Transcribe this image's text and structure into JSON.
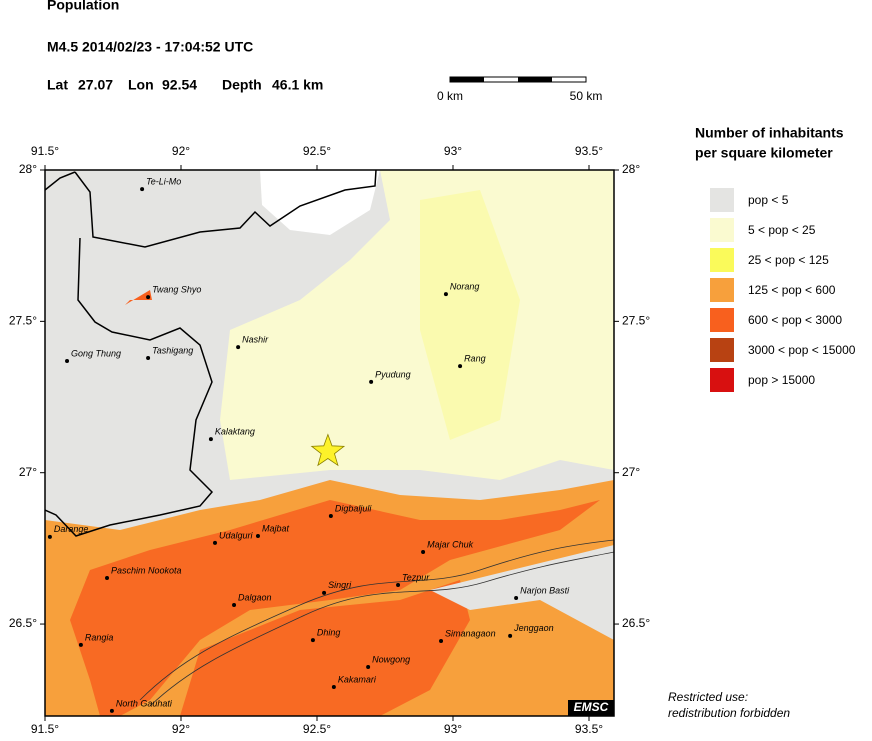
{
  "header": {
    "title": "Population",
    "event": "M4.5  2014/02/23 - 17:04:52 UTC",
    "lat": {
      "label": "Lat",
      "value": 27.07
    },
    "lon": {
      "label": "Lon",
      "value": 92.54
    },
    "depth": {
      "label": "Depth",
      "value": "46.1 km"
    }
  },
  "scale_bar": {
    "start": "0 km",
    "end": "50 km"
  },
  "map": {
    "lon_ticks": [
      {
        "value": 91.5,
        "label": "91.5°"
      },
      {
        "value": 92,
        "label": "92°"
      },
      {
        "value": 92.5,
        "label": "92.5°"
      },
      {
        "value": 93,
        "label": "93°"
      },
      {
        "value": 93.5,
        "label": "93.5°"
      }
    ],
    "lat_ticks": [
      {
        "value": 28,
        "label": "28°"
      },
      {
        "value": 27.5,
        "label": "27.5°"
      },
      {
        "value": 27,
        "label": "27°"
      },
      {
        "value": 26.5,
        "label": "26.5°"
      }
    ],
    "places": [
      {
        "name": "Te-Li-Mo",
        "lon": 91.857,
        "lat": 27.937
      },
      {
        "name": "Twang Shyo",
        "lon": 91.879,
        "lat": 27.58
      },
      {
        "name": "Gong Thung",
        "lon": 91.581,
        "lat": 27.369
      },
      {
        "name": "Tashigang",
        "lon": 91.879,
        "lat": 27.379
      },
      {
        "name": "Nashir",
        "lon": 92.21,
        "lat": 27.415
      },
      {
        "name": "Kalaktang",
        "lon": 92.11,
        "lat": 27.111
      },
      {
        "name": "Pyudung",
        "lon": 92.699,
        "lat": 27.3
      },
      {
        "name": "Norang",
        "lon": 92.974,
        "lat": 27.59
      },
      {
        "name": "Rang",
        "lon": 93.026,
        "lat": 27.352
      },
      {
        "name": "Darange",
        "lon": 91.518,
        "lat": 26.788
      },
      {
        "name": "Udalguri",
        "lon": 92.125,
        "lat": 26.768
      },
      {
        "name": "Majbat",
        "lon": 92.283,
        "lat": 26.791
      },
      {
        "name": "Digbaljuli",
        "lon": 92.551,
        "lat": 26.857
      },
      {
        "name": "Majar Chuk",
        "lon": 92.89,
        "lat": 26.738
      },
      {
        "name": "Tezpur",
        "lon": 92.798,
        "lat": 26.629
      },
      {
        "name": "Paschim Nookota",
        "lon": 91.728,
        "lat": 26.652
      },
      {
        "name": "Singri",
        "lon": 92.526,
        "lat": 26.603
      },
      {
        "name": "Dalgaon",
        "lon": 92.195,
        "lat": 26.563
      },
      {
        "name": "Narjon Basti",
        "lon": 93.232,
        "lat": 26.586
      },
      {
        "name": "Jenggaon",
        "lon": 93.21,
        "lat": 26.461
      },
      {
        "name": "Simanagaon",
        "lon": 92.956,
        "lat": 26.444
      },
      {
        "name": "Dhing",
        "lon": 92.485,
        "lat": 26.447
      },
      {
        "name": "Rangia",
        "lon": 91.632,
        "lat": 26.431
      },
      {
        "name": "Nowgong",
        "lon": 92.688,
        "lat": 26.358
      },
      {
        "name": "Kakamari",
        "lon": 92.562,
        "lat": 26.292
      },
      {
        "name": "North Gauhati",
        "lon": 91.746,
        "lat": 26.213
      }
    ],
    "badge": "EMSC"
  },
  "legend": {
    "title_line1": "Number of inhabitants",
    "title_line2": "per square kilometer",
    "items": [
      {
        "label": "pop < 5",
        "color": "#e4e4e2"
      },
      {
        "label": "5 < pop < 25",
        "color": "#fafad0"
      },
      {
        "label": "25 < pop < 125",
        "color": "#fafa5a"
      },
      {
        "label": "125 < pop < 600",
        "color": "#f7a03c"
      },
      {
        "label": "600 < pop < 3000",
        "color": "#f8601e"
      },
      {
        "label": "3000 < pop < 15000",
        "color": "#b84212"
      },
      {
        "label": "pop > 15000",
        "color": "#d81010"
      }
    ]
  },
  "footer": {
    "line1": "Restricted use:",
    "line2": "redistribution forbidden"
  }
}
